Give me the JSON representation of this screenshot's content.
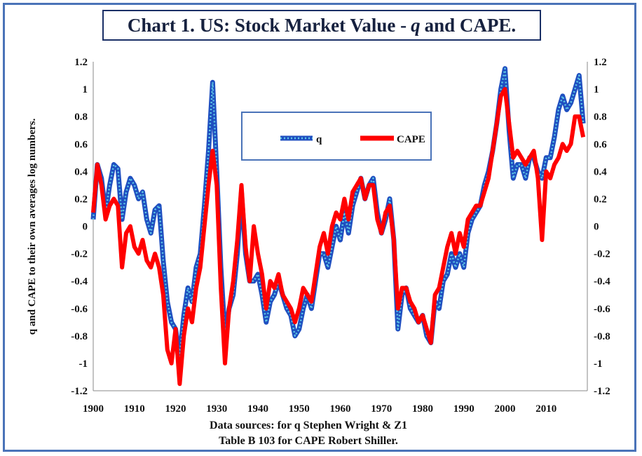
{
  "title": {
    "prefix": "Chart 1. US: Stock Market Value - ",
    "italic": "q",
    "suffix": "and CAPE."
  },
  "source": {
    "line1": "Data sources: for q Stephen Wright & Z1",
    "line2": "Table B 103 for CAPE Robert Shiller."
  },
  "colors": {
    "frame": "#4a73b8",
    "q_main": "#1f4fc0",
    "q_marker": "#5ec8e6",
    "cape": "#ff0000"
  },
  "chart_data": {
    "type": "line",
    "title": "Chart 1. US: Stock Market Value - q and CAPE.",
    "xlabel": "",
    "ylabel": "q and CAPE to their own averages log numbers.",
    "y2label": "",
    "xlim": [
      1900,
      2020
    ],
    "ylim": [
      -1.2,
      1.2
    ],
    "x_ticks": [
      "1900",
      "1910",
      "1920",
      "1930",
      "1940",
      "1950",
      "1960",
      "1970",
      "1980",
      "1990",
      "2000",
      "2010"
    ],
    "y_ticks": [
      "1.2",
      "1",
      "0.8",
      "0.6",
      "0.4",
      "0.2",
      "0",
      "-0.2",
      "-0.4",
      "-0.6",
      "-0.8",
      "-1",
      "-1.2"
    ],
    "legend": {
      "position": "top-center",
      "entries": [
        "q",
        "CAPE"
      ]
    },
    "series": [
      {
        "name": "q",
        "x": [
          1900,
          1901,
          1902,
          1903,
          1904,
          1905,
          1906,
          1907,
          1908,
          1909,
          1910,
          1911,
          1912,
          1913,
          1914,
          1915,
          1916,
          1917,
          1918,
          1919,
          1920,
          1921,
          1922,
          1923,
          1924,
          1925,
          1926,
          1927,
          1928,
          1929,
          1930,
          1931,
          1932,
          1933,
          1934,
          1935,
          1936,
          1937,
          1938,
          1939,
          1940,
          1941,
          1942,
          1943,
          1944,
          1945,
          1946,
          1947,
          1948,
          1949,
          1950,
          1951,
          1952,
          1953,
          1954,
          1955,
          1956,
          1957,
          1958,
          1959,
          1960,
          1961,
          1962,
          1963,
          1964,
          1965,
          1966,
          1967,
          1968,
          1969,
          1970,
          1971,
          1972,
          1973,
          1974,
          1975,
          1976,
          1977,
          1978,
          1979,
          1980,
          1981,
          1982,
          1983,
          1984,
          1985,
          1986,
          1987,
          1988,
          1989,
          1990,
          1991,
          1992,
          1993,
          1994,
          1995,
          1996,
          1997,
          1998,
          1999,
          2000,
          2001,
          2002,
          2003,
          2004,
          2005,
          2006,
          2007,
          2008,
          2009,
          2010,
          2011,
          2012,
          2013,
          2014,
          2015,
          2016,
          2017,
          2018,
          2019
        ],
        "values": [
          0.05,
          0.45,
          0.35,
          0.1,
          0.3,
          0.45,
          0.42,
          0.05,
          0.25,
          0.35,
          0.3,
          0.2,
          0.25,
          0.05,
          -0.05,
          0.12,
          0.15,
          -0.25,
          -0.55,
          -0.7,
          -0.75,
          -0.95,
          -0.65,
          -0.45,
          -0.55,
          -0.3,
          -0.2,
          0.15,
          0.55,
          1.05,
          0.4,
          -0.3,
          -0.8,
          -0.6,
          -0.5,
          -0.2,
          0.25,
          -0.2,
          -0.4,
          -0.4,
          -0.35,
          -0.5,
          -0.7,
          -0.55,
          -0.5,
          -0.4,
          -0.5,
          -0.6,
          -0.65,
          -0.8,
          -0.75,
          -0.6,
          -0.5,
          -0.6,
          -0.4,
          -0.2,
          -0.2,
          -0.3,
          -0.15,
          0.0,
          -0.1,
          0.1,
          -0.05,
          0.15,
          0.25,
          0.35,
          0.2,
          0.3,
          0.35,
          0.1,
          -0.05,
          0.05,
          0.2,
          -0.1,
          -0.75,
          -0.5,
          -0.45,
          -0.6,
          -0.65,
          -0.7,
          -0.65,
          -0.8,
          -0.85,
          -0.55,
          -0.6,
          -0.4,
          -0.35,
          -0.2,
          -0.3,
          -0.2,
          -0.3,
          -0.05,
          0.05,
          0.1,
          0.15,
          0.3,
          0.4,
          0.55,
          0.75,
          1.0,
          1.15,
          0.7,
          0.35,
          0.45,
          0.45,
          0.35,
          0.5,
          0.5,
          0.4,
          0.35,
          0.5,
          0.5,
          0.65,
          0.85,
          0.95,
          0.85,
          0.9,
          1.0,
          1.1,
          0.75
        ],
        "color": "#1f4fc0"
      },
      {
        "name": "CAPE",
        "x": [
          1900,
          1901,
          1902,
          1903,
          1904,
          1905,
          1906,
          1907,
          1908,
          1909,
          1910,
          1911,
          1912,
          1913,
          1914,
          1915,
          1916,
          1917,
          1918,
          1919,
          1920,
          1921,
          1922,
          1923,
          1924,
          1925,
          1926,
          1927,
          1928,
          1929,
          1930,
          1931,
          1932,
          1933,
          1934,
          1935,
          1936,
          1937,
          1938,
          1939,
          1940,
          1941,
          1942,
          1943,
          1944,
          1945,
          1946,
          1947,
          1948,
          1949,
          1950,
          1951,
          1952,
          1953,
          1954,
          1955,
          1956,
          1957,
          1958,
          1959,
          1960,
          1961,
          1962,
          1963,
          1964,
          1965,
          1966,
          1967,
          1968,
          1969,
          1970,
          1971,
          1972,
          1973,
          1974,
          1975,
          1976,
          1977,
          1978,
          1979,
          1980,
          1981,
          1982,
          1983,
          1984,
          1985,
          1986,
          1987,
          1988,
          1989,
          1990,
          1991,
          1992,
          1993,
          1994,
          1995,
          1996,
          1997,
          1998,
          1999,
          2000,
          2001,
          2002,
          2003,
          2004,
          2005,
          2006,
          2007,
          2008,
          2009,
          2010,
          2011,
          2012,
          2013,
          2014,
          2015,
          2016,
          2017,
          2018,
          2019
        ],
        "values": [
          0.1,
          0.45,
          0.3,
          0.05,
          0.15,
          0.2,
          0.15,
          -0.3,
          -0.05,
          0.0,
          -0.15,
          -0.2,
          -0.1,
          -0.25,
          -0.3,
          -0.2,
          -0.3,
          -0.5,
          -0.9,
          -1.0,
          -0.75,
          -1.15,
          -0.8,
          -0.6,
          -0.7,
          -0.45,
          -0.3,
          0.0,
          0.3,
          0.55,
          0.3,
          -0.45,
          -1.0,
          -0.6,
          -0.4,
          -0.1,
          0.3,
          -0.15,
          -0.4,
          0.0,
          -0.2,
          -0.35,
          -0.6,
          -0.4,
          -0.45,
          -0.35,
          -0.5,
          -0.55,
          -0.6,
          -0.7,
          -0.6,
          -0.45,
          -0.5,
          -0.55,
          -0.35,
          -0.15,
          -0.05,
          -0.2,
          0.0,
          0.1,
          0.05,
          0.2,
          0.05,
          0.25,
          0.3,
          0.35,
          0.2,
          0.3,
          0.3,
          0.05,
          -0.05,
          0.1,
          0.15,
          -0.1,
          -0.6,
          -0.45,
          -0.45,
          -0.55,
          -0.6,
          -0.7,
          -0.65,
          -0.75,
          -0.85,
          -0.5,
          -0.45,
          -0.3,
          -0.15,
          -0.05,
          -0.2,
          -0.05,
          -0.15,
          0.05,
          0.1,
          0.15,
          0.15,
          0.25,
          0.35,
          0.55,
          0.75,
          0.95,
          1.0,
          0.75,
          0.5,
          0.55,
          0.5,
          0.45,
          0.5,
          0.55,
          0.35,
          -0.1,
          0.4,
          0.35,
          0.45,
          0.5,
          0.6,
          0.55,
          0.6,
          0.8,
          0.8,
          0.65
        ],
        "color": "#ff0000"
      }
    ]
  }
}
